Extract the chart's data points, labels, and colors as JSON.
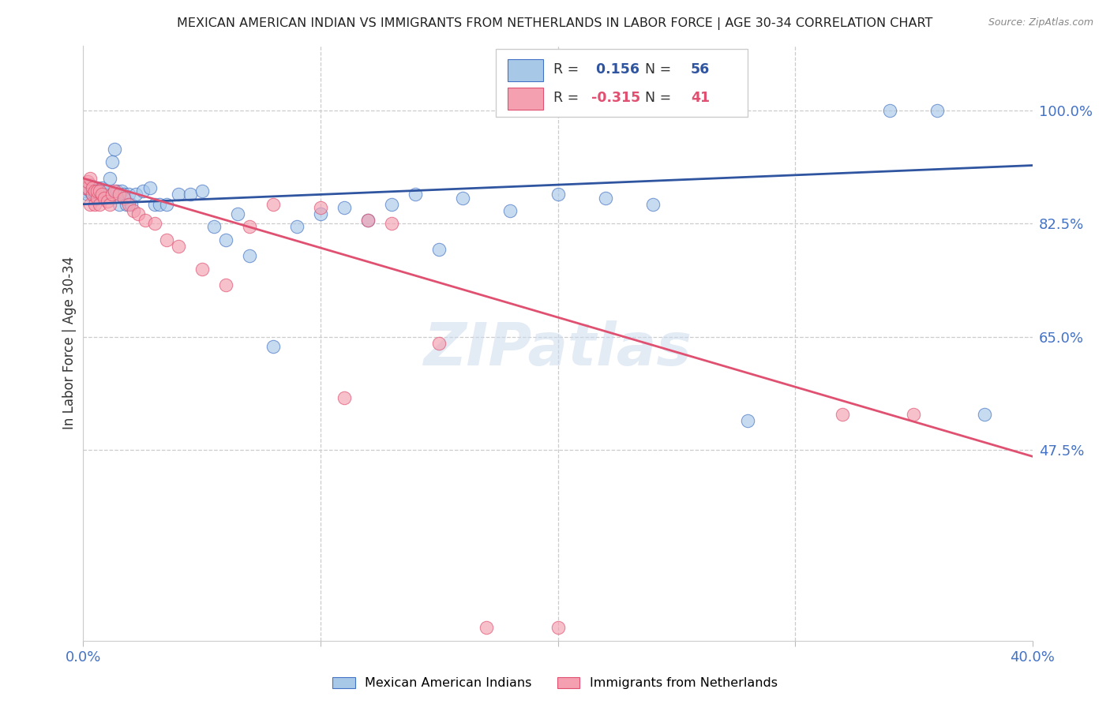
{
  "title": "MEXICAN AMERICAN INDIAN VS IMMIGRANTS FROM NETHERLANDS IN LABOR FORCE | AGE 30-34 CORRELATION CHART",
  "source": "Source: ZipAtlas.com",
  "ylabel": "In Labor Force | Age 30-34",
  "ytick_labels": [
    "100.0%",
    "82.5%",
    "65.0%",
    "47.5%"
  ],
  "ytick_values": [
    1.0,
    0.825,
    0.65,
    0.475
  ],
  "blue_R": "0.156",
  "blue_N": "56",
  "pink_R": "-0.315",
  "pink_N": "41",
  "legend_label_blue": "Mexican American Indians",
  "legend_label_pink": "Immigrants from Netherlands",
  "blue_color": "#a8c8e8",
  "pink_color": "#f4a0b0",
  "blue_edge_color": "#4472c4",
  "pink_edge_color": "#e05070",
  "blue_line_color": "#3055a0",
  "pink_line_color": "#e05070",
  "watermark": "ZIPatlas",
  "xlim": [
    0.0,
    0.4
  ],
  "ylim": [
    0.18,
    1.1
  ],
  "blue_line_y0": 0.855,
  "blue_line_y1": 0.915,
  "pink_line_y0": 0.895,
  "pink_line_y1": 0.465,
  "blue_x": [
    0.001,
    0.002,
    0.002,
    0.003,
    0.003,
    0.004,
    0.004,
    0.005,
    0.005,
    0.006,
    0.006,
    0.007,
    0.007,
    0.008,
    0.009,
    0.01,
    0.011,
    0.012,
    0.013,
    0.014,
    0.015,
    0.016,
    0.017,
    0.018,
    0.019,
    0.02,
    0.022,
    0.025,
    0.028,
    0.03,
    0.032,
    0.035,
    0.04,
    0.045,
    0.05,
    0.055,
    0.06,
    0.065,
    0.07,
    0.08,
    0.09,
    0.1,
    0.11,
    0.12,
    0.13,
    0.14,
    0.15,
    0.16,
    0.18,
    0.2,
    0.22,
    0.24,
    0.28,
    0.34,
    0.36,
    0.38
  ],
  "blue_y": [
    0.875,
    0.87,
    0.88,
    0.885,
    0.875,
    0.88,
    0.87,
    0.875,
    0.87,
    0.875,
    0.88,
    0.87,
    0.875,
    0.88,
    0.87,
    0.875,
    0.895,
    0.92,
    0.94,
    0.875,
    0.855,
    0.875,
    0.87,
    0.855,
    0.87,
    0.855,
    0.87,
    0.875,
    0.88,
    0.855,
    0.855,
    0.855,
    0.87,
    0.87,
    0.875,
    0.82,
    0.8,
    0.84,
    0.775,
    0.635,
    0.82,
    0.84,
    0.85,
    0.83,
    0.855,
    0.87,
    0.785,
    0.865,
    0.845,
    0.87,
    0.865,
    0.855,
    0.52,
    1.0,
    1.0,
    0.53
  ],
  "pink_x": [
    0.001,
    0.002,
    0.002,
    0.003,
    0.003,
    0.004,
    0.004,
    0.005,
    0.005,
    0.006,
    0.006,
    0.007,
    0.007,
    0.008,
    0.009,
    0.01,
    0.011,
    0.012,
    0.013,
    0.015,
    0.017,
    0.019,
    0.021,
    0.023,
    0.026,
    0.03,
    0.035,
    0.04,
    0.05,
    0.06,
    0.07,
    0.08,
    0.1,
    0.11,
    0.12,
    0.13,
    0.15,
    0.17,
    0.2,
    0.32,
    0.35
  ],
  "pink_y": [
    0.88,
    0.88,
    0.89,
    0.855,
    0.895,
    0.87,
    0.88,
    0.855,
    0.875,
    0.865,
    0.875,
    0.855,
    0.875,
    0.87,
    0.865,
    0.86,
    0.855,
    0.87,
    0.875,
    0.87,
    0.865,
    0.855,
    0.845,
    0.84,
    0.83,
    0.825,
    0.8,
    0.79,
    0.755,
    0.73,
    0.82,
    0.855,
    0.85,
    0.555,
    0.83,
    0.825,
    0.64,
    0.2,
    0.2,
    0.53,
    0.53
  ]
}
